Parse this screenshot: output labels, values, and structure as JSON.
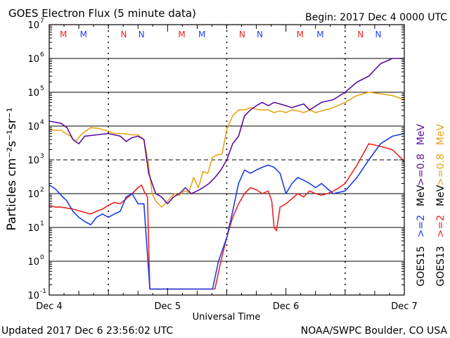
{
  "chart_data": {
    "type": "line",
    "title": "GOES Electron Flux (5 minute data)",
    "begin_label": "Begin: 2017 Dec 4 0000 UTC",
    "xlabel": "Universal Time",
    "ylabel": "Particles cm⁻²s⁻¹sr⁻¹",
    "x_unit": "days since Begin",
    "xlim": [
      0,
      3
    ],
    "x_ticks": [
      {
        "x": 0,
        "label": "Dec 4"
      },
      {
        "x": 1,
        "label": "Dec 5"
      },
      {
        "x": 2,
        "label": "Dec 6"
      },
      {
        "x": 3,
        "label": "Dec 7"
      }
    ],
    "yscale": "log",
    "ylim": [
      0.1,
      10000000
    ],
    "y_ticks": [
      {
        "value": 0.1,
        "base": "10",
        "exp": "-1"
      },
      {
        "value": 1,
        "base": "10",
        "exp": "0"
      },
      {
        "value": 10,
        "base": "10",
        "exp": "1"
      },
      {
        "value": 100,
        "base": "10",
        "exp": "2"
      },
      {
        "value": 1000,
        "base": "10",
        "exp": "3"
      },
      {
        "value": 10000,
        "base": "10",
        "exp": "4"
      },
      {
        "value": 100000,
        "base": "10",
        "exp": "5"
      },
      {
        "value": 1000000,
        "base": "10",
        "exp": "6"
      },
      {
        "value": 10000000,
        "base": "10",
        "exp": "7"
      }
    ],
    "horizontal_gridlines": [
      1,
      10,
      100,
      10000,
      100000,
      1000000
    ],
    "dashed_threshold": 1000,
    "noon_markers": [
      0.5,
      1.5,
      2.5
    ],
    "mn_markers": [
      {
        "x": 0.12,
        "letter": "M",
        "color": "#ee2222"
      },
      {
        "x": 0.29,
        "letter": "M",
        "color": "#2244ee"
      },
      {
        "x": 0.63,
        "letter": "N",
        "color": "#ee2222"
      },
      {
        "x": 0.78,
        "letter": "N",
        "color": "#2244ee"
      },
      {
        "x": 1.12,
        "letter": "M",
        "color": "#ee2222"
      },
      {
        "x": 1.29,
        "letter": "M",
        "color": "#2244ee"
      },
      {
        "x": 1.63,
        "letter": "N",
        "color": "#ee2222"
      },
      {
        "x": 1.78,
        "letter": "N",
        "color": "#2244ee"
      },
      {
        "x": 2.12,
        "letter": "M",
        "color": "#ee2222"
      },
      {
        "x": 2.29,
        "letter": "M",
        "color": "#2244ee"
      },
      {
        "x": 2.63,
        "letter": "N",
        "color": "#ee2222"
      },
      {
        "x": 2.78,
        "letter": "N",
        "color": "#2244ee"
      }
    ],
    "series": [
      {
        "name": ">=0.8 MeV",
        "label_parts": [
          ">=0.8",
          "MeV"
        ],
        "satellite": "GOES13",
        "color": "#e8a317",
        "x": [
          0,
          0.05,
          0.1,
          0.18,
          0.22,
          0.28,
          0.35,
          0.42,
          0.5,
          0.55,
          0.62,
          0.7,
          0.75,
          0.8,
          0.84,
          0.87,
          0.9,
          0.95,
          1.0,
          1.03,
          1.06,
          1.1,
          1.14,
          1.18,
          1.22,
          1.26,
          1.3,
          1.34,
          1.38,
          1.42,
          1.46,
          1.5,
          1.55,
          1.6,
          1.65,
          1.7,
          1.78,
          1.85,
          1.9,
          1.95,
          2.0,
          2.05,
          2.1,
          2.15,
          2.2,
          2.25,
          2.3,
          2.4,
          2.5,
          2.6,
          2.7,
          2.8,
          2.9,
          3.0
        ],
        "y": [
          8000,
          7500,
          7500,
          5000,
          3500,
          6000,
          9000,
          8500,
          7000,
          6000,
          6000,
          5500,
          5500,
          4000,
          700,
          100,
          60,
          40,
          60,
          80,
          100,
          90,
          120,
          110,
          300,
          150,
          450,
          400,
          1200,
          1400,
          1500,
          8000,
          20000,
          30000,
          30000,
          35000,
          30000,
          30000,
          25000,
          28000,
          25000,
          30000,
          28000,
          25000,
          30000,
          25000,
          28000,
          35000,
          50000,
          80000,
          100000,
          90000,
          80000,
          60000
        ]
      },
      {
        "name": ">=2 MeV",
        "label_parts": [
          ">=2",
          "MeV"
        ],
        "satellite": "GOES13",
        "color": "#ee2222",
        "x": [
          0,
          0.05,
          0.1,
          0.2,
          0.3,
          0.35,
          0.4,
          0.45,
          0.5,
          0.55,
          0.6,
          0.65,
          0.7,
          0.75,
          0.78,
          0.8,
          0.83,
          0.85,
          1.0,
          1.2,
          1.4,
          1.45,
          1.5,
          1.55,
          1.6,
          1.65,
          1.7,
          1.75,
          1.8,
          1.85,
          1.88,
          1.9,
          1.92,
          1.95,
          2.0,
          2.1,
          2.15,
          2.2,
          2.25,
          2.3,
          2.35,
          2.4,
          2.45,
          2.5,
          2.6,
          2.7,
          2.8,
          2.9,
          3.0
        ],
        "y": [
          45,
          40,
          40,
          35,
          28,
          25,
          30,
          35,
          45,
          55,
          50,
          70,
          100,
          150,
          180,
          120,
          80,
          0.15,
          0.15,
          0.15,
          0.15,
          1,
          5,
          20,
          50,
          100,
          150,
          130,
          100,
          120,
          60,
          10,
          8,
          40,
          50,
          100,
          80,
          120,
          100,
          90,
          100,
          120,
          150,
          200,
          700,
          3000,
          2500,
          2000,
          900
        ]
      },
      {
        "name": ">=0.8 MeV",
        "label_parts": [
          ">=0.8",
          "MeV"
        ],
        "satellite": "GOES15",
        "color": "#5b0f9e",
        "x": [
          0,
          0.05,
          0.1,
          0.15,
          0.2,
          0.25,
          0.3,
          0.4,
          0.5,
          0.6,
          0.65,
          0.7,
          0.75,
          0.8,
          0.84,
          0.87,
          0.9,
          0.95,
          1.0,
          1.05,
          1.1,
          1.15,
          1.2,
          1.25,
          1.3,
          1.35,
          1.4,
          1.45,
          1.5,
          1.55,
          1.6,
          1.65,
          1.7,
          1.75,
          1.8,
          1.85,
          1.9,
          1.95,
          2.0,
          2.05,
          2.1,
          2.15,
          2.2,
          2.3,
          2.4,
          2.5,
          2.6,
          2.7,
          2.8,
          2.9,
          3.0
        ],
        "y": [
          14000,
          13000,
          12000,
          9000,
          4000,
          3000,
          5000,
          5500,
          6000,
          5000,
          3500,
          4500,
          5000,
          4000,
          400,
          200,
          100,
          80,
          50,
          80,
          100,
          150,
          100,
          120,
          150,
          200,
          300,
          500,
          1000,
          3000,
          5000,
          20000,
          30000,
          40000,
          50000,
          40000,
          50000,
          45000,
          40000,
          35000,
          40000,
          45000,
          30000,
          50000,
          60000,
          100000,
          200000,
          300000,
          700000,
          1000000,
          1000000
        ]
      },
      {
        "name": ">=2 MeV",
        "label_parts": [
          ">=2",
          "MeV"
        ],
        "satellite": "GOES15",
        "color": "#1a3de6",
        "x": [
          0,
          0.05,
          0.1,
          0.15,
          0.2,
          0.25,
          0.3,
          0.35,
          0.4,
          0.45,
          0.5,
          0.55,
          0.6,
          0.65,
          0.7,
          0.75,
          0.8,
          0.85,
          1.0,
          1.2,
          1.38,
          1.43,
          1.5,
          1.55,
          1.6,
          1.65,
          1.7,
          1.75,
          1.8,
          1.85,
          1.9,
          1.95,
          2.0,
          2.05,
          2.1,
          2.15,
          2.2,
          2.25,
          2.3,
          2.4,
          2.5,
          2.6,
          2.7,
          2.8,
          2.9,
          3.0
        ],
        "y": [
          180,
          140,
          90,
          60,
          30,
          20,
          15,
          12,
          20,
          25,
          20,
          25,
          30,
          80,
          100,
          50,
          50,
          0.15,
          0.15,
          0.15,
          0.15,
          1,
          5,
          30,
          200,
          500,
          400,
          500,
          600,
          700,
          600,
          400,
          100,
          200,
          300,
          250,
          200,
          150,
          200,
          100,
          120,
          300,
          1000,
          3000,
          5000,
          6000
        ]
      }
    ],
    "legend": {
      "placement": "right",
      "satellites": [
        {
          "label": "GOES15",
          "colors": [
            "#1a3de6",
            "#5b0f9e"
          ]
        },
        {
          "label": "GOES13",
          "colors": [
            "#ee2222",
            "#e8a317"
          ]
        }
      ]
    }
  },
  "footer": {
    "updated": "Updated 2017 Dec  6 23:56:02 UTC",
    "source": "NOAA/SWPC Boulder, CO USA"
  }
}
